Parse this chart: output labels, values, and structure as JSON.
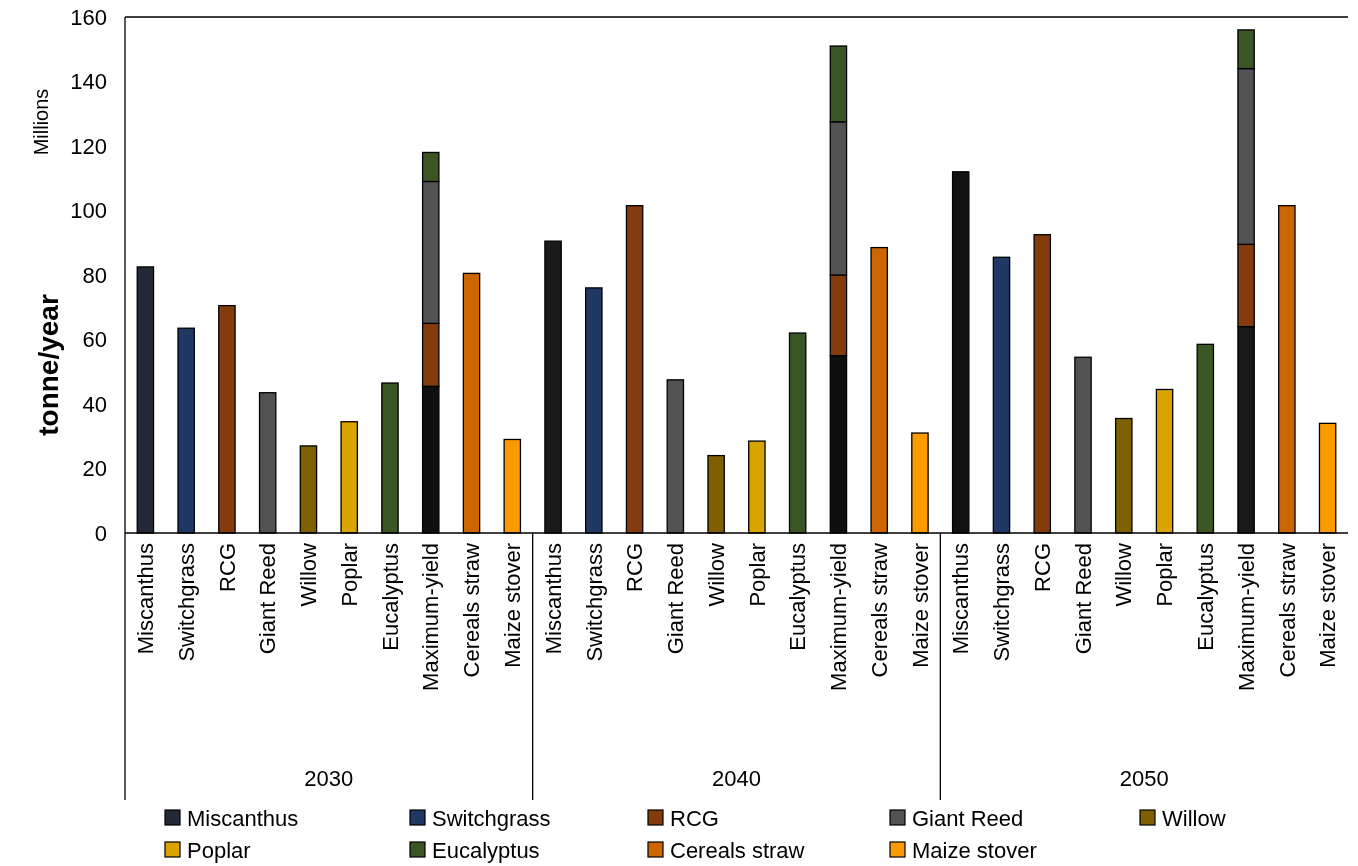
{
  "chart_data": {
    "type": "bar",
    "stacked": true,
    "ylabel": "tonne/year",
    "annotations": [
      "Millions",
      "2030",
      "2040",
      "2050"
    ],
    "categories": [
      "Miscanthus",
      "Switchgrass",
      "RCG",
      "Giant Reed",
      "Willow",
      "Poplar",
      "Eucalyptus",
      "Maximum-yield",
      "Cereals straw",
      "Maize stover",
      "Miscanthus",
      "Switchgrass",
      "RCG",
      "Giant Reed",
      "Willow",
      "Poplar",
      "Eucalyptus",
      "Maximum-yield",
      "Cereals straw",
      "Maize stover",
      "Miscanthus",
      "Switchgrass",
      "RCG",
      "Giant Reed",
      "Willow",
      "Poplar",
      "Eucalyptus",
      "Maximum-yield",
      "Cereals straw",
      "Maize stover"
    ],
    "series": [
      {
        "name": "Miscanthus",
        "color": "#232a35",
        "colors": [
          "#232a35",
          null,
          null,
          null,
          null,
          null,
          null,
          "#0f0f0f",
          null,
          null,
          "#1a1a1a",
          null,
          null,
          null,
          null,
          null,
          null,
          "#0f0f0f",
          null,
          null,
          "#111111",
          null,
          null,
          null,
          null,
          null,
          null,
          "#191919",
          null,
          null
        ],
        "values": [
          82.5,
          null,
          null,
          null,
          null,
          null,
          null,
          45.5,
          null,
          null,
          90.5,
          null,
          null,
          null,
          null,
          null,
          null,
          55,
          null,
          null,
          112,
          null,
          null,
          null,
          null,
          null,
          null,
          64,
          null,
          null
        ]
      },
      {
        "name": "Switchgrass",
        "color": "#203864",
        "values": [
          null,
          63.5,
          null,
          null,
          null,
          null,
          null,
          null,
          null,
          null,
          null,
          76,
          null,
          null,
          null,
          null,
          null,
          null,
          null,
          null,
          null,
          85.5,
          null,
          null,
          null,
          null,
          null,
          null,
          null,
          null
        ]
      },
      {
        "name": "RCG",
        "color": "#843c0c",
        "values": [
          null,
          null,
          70.5,
          null,
          null,
          null,
          null,
          19.5,
          null,
          null,
          null,
          null,
          101.5,
          null,
          null,
          null,
          null,
          25,
          null,
          null,
          null,
          null,
          92.5,
          null,
          null,
          null,
          null,
          25.5,
          null,
          null
        ]
      },
      {
        "name": "Giant Reed",
        "color": "#525252",
        "values": [
          null,
          null,
          null,
          43.5,
          null,
          null,
          null,
          44,
          null,
          null,
          null,
          null,
          null,
          47.5,
          null,
          null,
          null,
          47.5,
          null,
          null,
          null,
          null,
          null,
          54.5,
          null,
          null,
          null,
          54.5,
          null,
          null
        ]
      },
      {
        "name": "Willow",
        "color": "#7f6000",
        "values": [
          null,
          null,
          null,
          null,
          27,
          null,
          null,
          null,
          null,
          null,
          null,
          null,
          null,
          null,
          24,
          null,
          null,
          null,
          null,
          null,
          null,
          null,
          null,
          null,
          35.5,
          null,
          null,
          null,
          null,
          null
        ]
      },
      {
        "name": "Poplar",
        "color": "#d9a400",
        "values": [
          null,
          null,
          null,
          null,
          null,
          34.5,
          null,
          null,
          null,
          null,
          null,
          null,
          null,
          null,
          null,
          28.5,
          null,
          null,
          null,
          null,
          null,
          null,
          null,
          null,
          null,
          44.5,
          null,
          null,
          null,
          null
        ]
      },
      {
        "name": "Eucalyptus",
        "color": "#3a5624",
        "values": [
          null,
          null,
          null,
          null,
          null,
          null,
          46.5,
          9,
          null,
          null,
          null,
          null,
          null,
          null,
          null,
          null,
          62,
          23.5,
          null,
          null,
          null,
          null,
          null,
          null,
          null,
          null,
          58.5,
          12,
          null,
          null
        ]
      },
      {
        "name": "Cereals straw",
        "color": "#cc6600",
        "values": [
          null,
          null,
          null,
          null,
          null,
          null,
          null,
          null,
          80.5,
          null,
          null,
          null,
          null,
          null,
          null,
          null,
          null,
          null,
          88.5,
          null,
          null,
          null,
          null,
          null,
          null,
          null,
          null,
          null,
          101.5,
          null
        ]
      },
      {
        "name": "Maize stover",
        "color": "#fb9b00",
        "values": [
          null,
          null,
          null,
          null,
          null,
          null,
          null,
          null,
          null,
          29,
          null,
          null,
          null,
          null,
          null,
          null,
          null,
          null,
          null,
          31,
          null,
          null,
          null,
          null,
          null,
          null,
          null,
          null,
          null,
          34
        ]
      }
    ],
    "ylim": [
      0,
      160
    ],
    "yticks": [
      0,
      20,
      40,
      60,
      80,
      100,
      120,
      140,
      160
    ],
    "grid": false,
    "legend": "bottom"
  }
}
